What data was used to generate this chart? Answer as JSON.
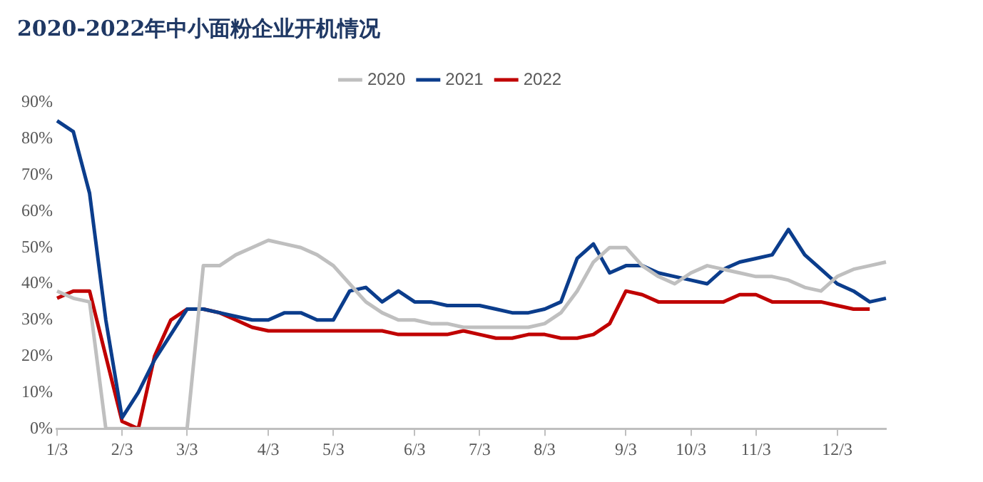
{
  "chart_data": {
    "type": "line",
    "title": "2020-2022年中小面粉企业开机情况",
    "categories": [
      "1/3",
      null,
      null,
      null,
      "2/3",
      null,
      null,
      null,
      "3/3",
      null,
      null,
      null,
      null,
      "4/3",
      null,
      null,
      null,
      "5/3",
      null,
      null,
      null,
      null,
      "6/3",
      null,
      null,
      null,
      "7/3",
      null,
      null,
      null,
      "8/3",
      null,
      null,
      null,
      null,
      "9/3",
      null,
      null,
      null,
      "10/3",
      null,
      null,
      null,
      "11/3",
      null,
      null,
      null,
      null,
      "12/3",
      null,
      null,
      null
    ],
    "series": [
      {
        "name": "2020",
        "color": "#bfbfbf",
        "values": [
          38,
          36,
          35,
          0,
          0,
          0,
          0,
          0,
          0,
          45,
          45,
          48,
          50,
          52,
          51,
          50,
          48,
          45,
          40,
          35,
          32,
          30,
          30,
          29,
          29,
          28,
          28,
          28,
          28,
          28,
          29,
          32,
          38,
          46,
          50,
          50,
          45,
          42,
          40,
          43,
          45,
          44,
          43,
          42,
          42,
          41,
          39,
          38,
          42,
          44,
          45,
          46
        ]
      },
      {
        "name": "2021",
        "color": "#0b3d8c",
        "values": [
          85,
          82,
          65,
          30,
          3,
          10,
          19,
          26,
          33,
          33,
          32,
          31,
          30,
          30,
          32,
          32,
          30,
          30,
          38,
          39,
          35,
          38,
          35,
          35,
          34,
          34,
          34,
          33,
          32,
          32,
          33,
          35,
          47,
          51,
          43,
          45,
          45,
          43,
          42,
          41,
          40,
          44,
          46,
          47,
          48,
          55,
          48,
          44,
          40,
          38,
          35,
          36
        ]
      },
      {
        "name": "2022",
        "color": "#c00000",
        "values": [
          36,
          38,
          38,
          20,
          2,
          0,
          20,
          30,
          33,
          33,
          32,
          30,
          28,
          27,
          27,
          27,
          27,
          27,
          27,
          27,
          27,
          26,
          26,
          26,
          26,
          27,
          26,
          25,
          25,
          26,
          26,
          25,
          25,
          26,
          29,
          38,
          37,
          35,
          35,
          35,
          35,
          35,
          37,
          37,
          35,
          35,
          35,
          35,
          34,
          33,
          33,
          null
        ]
      }
    ],
    "ylim": [
      0,
      90
    ],
    "yticks": [
      {
        "value": 0,
        "label": "0%"
      },
      {
        "value": 10,
        "label": "10%"
      },
      {
        "value": 20,
        "label": "20%"
      },
      {
        "value": 30,
        "label": "30%"
      },
      {
        "value": 40,
        "label": "40%"
      },
      {
        "value": 50,
        "label": "50%"
      },
      {
        "value": 60,
        "label": "60%"
      },
      {
        "value": 70,
        "label": "70%"
      },
      {
        "value": 80,
        "label": "80%"
      },
      {
        "value": 90,
        "label": "90%"
      }
    ],
    "grid": false,
    "legend": "top",
    "marker": "none",
    "line_style": "solid"
  }
}
